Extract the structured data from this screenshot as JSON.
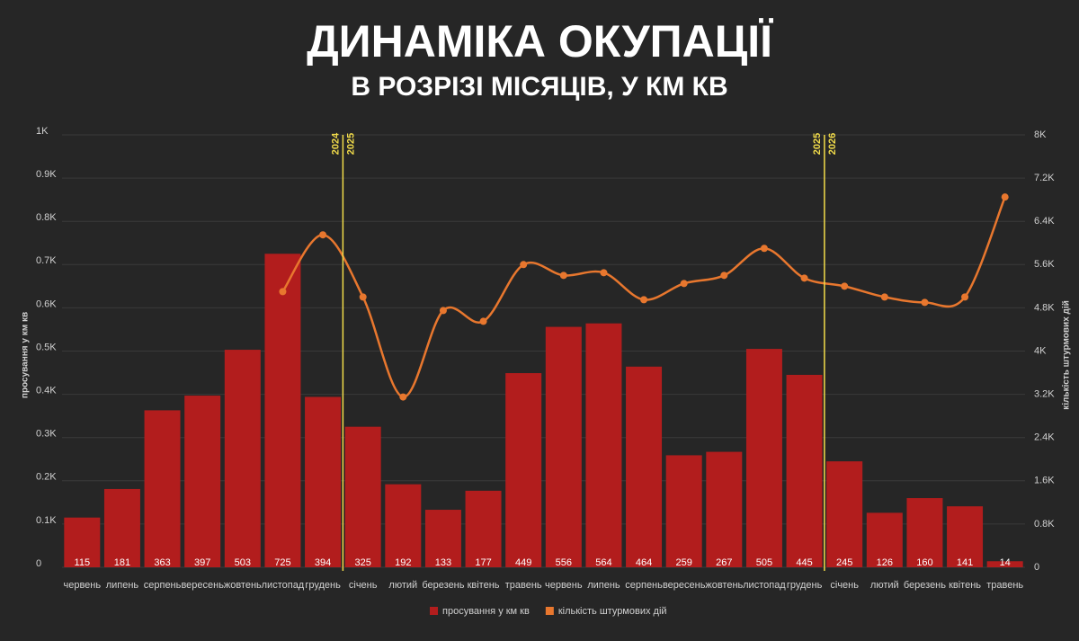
{
  "chart_data": {
    "type": "bar",
    "title": "ДИНАМІКА ОКУПАЦІЇ",
    "subtitle": "В РОЗРІЗІ МІСЯЦІВ, У КМ КВ",
    "y_label": "просування у км кв",
    "y2_label": "кількість штурмових дій",
    "categories": [
      "червень",
      "липень",
      "серпень",
      "вересень",
      "жовтень",
      "листопад",
      "грудень",
      "січень",
      "лютий",
      "березень",
      "квітень",
      "травень",
      "червень",
      "липень",
      "серпень",
      "вересень",
      "жовтень",
      "листопад",
      "грудень",
      "січень",
      "лютий",
      "березень",
      "квітень",
      "травень"
    ],
    "series": [
      {
        "name": "просування у км кв",
        "color": "#b21d1d",
        "type": "bar",
        "values": [
          115,
          181,
          363,
          397,
          503,
          725,
          394,
          325,
          192,
          133,
          177,
          449,
          556,
          564,
          464,
          259,
          267,
          505,
          445,
          245,
          126,
          160,
          141,
          14
        ]
      },
      {
        "name": "кількість штурмових дій",
        "color": "#e8772e",
        "type": "line",
        "axis": "y2",
        "values": [
          null,
          null,
          null,
          null,
          null,
          5100,
          6150,
          5000,
          3150,
          4750,
          4550,
          5600,
          5400,
          5450,
          4950,
          5250,
          5400,
          5900,
          5350,
          5200,
          5000,
          4900,
          5000,
          6850
        ]
      }
    ],
    "ylim": [
      0,
      1000
    ],
    "yticks": [
      0,
      {
        "value": 100,
        "label": "0.1K"
      },
      {
        "value": 200,
        "label": "0.2K"
      },
      {
        "value": 300,
        "label": "0.3K"
      },
      {
        "value": 400,
        "label": "0.4K"
      },
      {
        "value": 500,
        "label": "0.5K"
      },
      {
        "value": 600,
        "label": "0.6K"
      },
      {
        "value": 700,
        "label": "0.7K"
      },
      {
        "value": 800,
        "label": "0.8K"
      },
      {
        "value": 900,
        "label": "0.9K"
      },
      {
        "value": 1000,
        "label": "1K"
      }
    ],
    "y2lim": [
      0,
      8000
    ],
    "y2ticks": [
      0,
      {
        "value": 800,
        "label": "0.8K"
      },
      {
        "value": 1600,
        "label": "1.6K"
      },
      {
        "value": 2400,
        "label": "2.4K"
      },
      {
        "value": 3200,
        "label": "3.2K"
      },
      {
        "value": 4000,
        "label": "4K"
      },
      {
        "value": 4800,
        "label": "4.8K"
      },
      {
        "value": 5600,
        "label": "5.6K"
      },
      {
        "value": 6400,
        "label": "6.4K"
      },
      {
        "value": 7200,
        "label": "7.2K"
      },
      {
        "value": 8000,
        "label": "8K"
      }
    ],
    "grid": true,
    "year_markers": [
      {
        "before": "2024",
        "after": "2025",
        "at": 7
      },
      {
        "before": "2025",
        "after": "2026",
        "at": 19
      }
    ],
    "year_color": "#f2dc4a"
  }
}
